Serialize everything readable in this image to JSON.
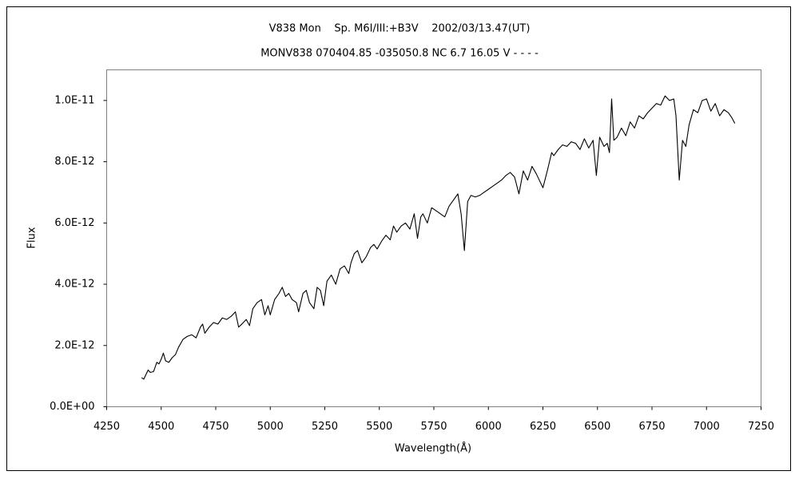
{
  "chart_data": {
    "type": "line",
    "title": "V838 Mon    Sp. M6I/III:+B3V    2002/03/13.47(UT)",
    "subtitle": "MONV838 070404.85 -035050.8 NC 6.7 16.05 V - - - -",
    "x_label": "Wavelength(Å)",
    "y_label": "Flux",
    "color": "#000000",
    "grid": false,
    "xlim": [
      4250,
      7250
    ],
    "xticks": [
      4250,
      4500,
      4750,
      5000,
      5250,
      5500,
      5750,
      6000,
      6250,
      6500,
      6750,
      7000,
      7250
    ],
    "ylim": [
      0,
      1.1e-11
    ],
    "yticks": [
      {
        "value": 0,
        "label": "0.0E+00"
      },
      {
        "value": 2e-12,
        "label": "2.0E-12"
      },
      {
        "value": 4e-12,
        "label": "4.0E-12"
      },
      {
        "value": 6e-12,
        "label": "6.0E-12"
      },
      {
        "value": 8e-12,
        "label": "8.0E-12"
      },
      {
        "value": 1e-11,
        "label": "1.0E-11"
      }
    ],
    "x": [
      4410,
      4420,
      4430,
      4440,
      4450,
      4465,
      4480,
      4490,
      4500,
      4510,
      4520,
      4535,
      4550,
      4565,
      4580,
      4600,
      4620,
      4640,
      4660,
      4680,
      4690,
      4700,
      4720,
      4740,
      4760,
      4780,
      4800,
      4820,
      4840,
      4855,
      4870,
      4890,
      4905,
      4920,
      4940,
      4960,
      4975,
      4990,
      5000,
      5020,
      5040,
      5055,
      5070,
      5085,
      5100,
      5120,
      5130,
      5150,
      5165,
      5180,
      5200,
      5215,
      5230,
      5245,
      5260,
      5280,
      5300,
      5320,
      5340,
      5360,
      5370,
      5385,
      5400,
      5420,
      5440,
      5460,
      5475,
      5490,
      5510,
      5530,
      5550,
      5565,
      5580,
      5600,
      5620,
      5640,
      5660,
      5675,
      5690,
      5700,
      5720,
      5740,
      5760,
      5780,
      5800,
      5820,
      5840,
      5860,
      5875,
      5890,
      5905,
      5920,
      5940,
      5960,
      5980,
      6000,
      6020,
      6040,
      6060,
      6080,
      6100,
      6120,
      6140,
      6160,
      6180,
      6200,
      6220,
      6240,
      6250,
      6270,
      6290,
      6300,
      6320,
      6340,
      6360,
      6380,
      6400,
      6420,
      6440,
      6460,
      6480,
      6495,
      6510,
      6530,
      6545,
      6555,
      6565,
      6575,
      6590,
      6610,
      6630,
      6650,
      6670,
      6690,
      6710,
      6730,
      6750,
      6770,
      6790,
      6810,
      6830,
      6850,
      6860,
      6875,
      6890,
      6905,
      6920,
      6940,
      6960,
      6980,
      7000,
      7020,
      7040,
      7060,
      7080,
      7100,
      7115,
      7130
    ],
    "values": [
      9.5e-13,
      9e-13,
      1.05e-12,
      1.2e-12,
      1.12e-12,
      1.15e-12,
      1.45e-12,
      1.4e-12,
      1.55e-12,
      1.75e-12,
      1.5e-12,
      1.45e-12,
      1.6e-12,
      1.7e-12,
      1.95e-12,
      2.2e-12,
      2.3e-12,
      2.35e-12,
      2.25e-12,
      2.6e-12,
      2.7e-12,
      2.4e-12,
      2.6e-12,
      2.75e-12,
      2.7e-12,
      2.9e-12,
      2.85e-12,
      2.95e-12,
      3.1e-12,
      2.6e-12,
      2.7e-12,
      2.85e-12,
      2.65e-12,
      3.2e-12,
      3.4e-12,
      3.5e-12,
      3e-12,
      3.3e-12,
      3e-12,
      3.5e-12,
      3.7e-12,
      3.9e-12,
      3.6e-12,
      3.7e-12,
      3.5e-12,
      3.4e-12,
      3.1e-12,
      3.7e-12,
      3.8e-12,
      3.4e-12,
      3.2e-12,
      3.9e-12,
      3.8e-12,
      3.3e-12,
      4.1e-12,
      4.3e-12,
      4e-12,
      4.5e-12,
      4.6e-12,
      4.35e-12,
      4.7e-12,
      5e-12,
      5.1e-12,
      4.7e-12,
      4.9e-12,
      5.2e-12,
      5.3e-12,
      5.15e-12,
      5.4e-12,
      5.6e-12,
      5.45e-12,
      5.9e-12,
      5.7e-12,
      5.9e-12,
      6e-12,
      5.8e-12,
      6.3e-12,
      5.5e-12,
      6.2e-12,
      6.3e-12,
      6e-12,
      6.5e-12,
      6.4e-12,
      6.3e-12,
      6.2e-12,
      6.55e-12,
      6.75e-12,
      6.95e-12,
      6.3e-12,
      5.1e-12,
      6.7e-12,
      6.9e-12,
      6.85e-12,
      6.9e-12,
      7e-12,
      7.1e-12,
      7.2e-12,
      7.3e-12,
      7.4e-12,
      7.55e-12,
      7.65e-12,
      7.5e-12,
      6.95e-12,
      7.7e-12,
      7.4e-12,
      7.85e-12,
      7.6e-12,
      7.3e-12,
      7.15e-12,
      7.7e-12,
      8.3e-12,
      8.2e-12,
      8.4e-12,
      8.55e-12,
      8.5e-12,
      8.65e-12,
      8.6e-12,
      8.4e-12,
      8.75e-12,
      8.45e-12,
      8.7e-12,
      7.55e-12,
      8.8e-12,
      8.5e-12,
      8.6e-12,
      8.3e-12,
      1.005e-11,
      8.7e-12,
      8.8e-12,
      9.1e-12,
      8.85e-12,
      9.3e-12,
      9.1e-12,
      9.5e-12,
      9.4e-12,
      9.6e-12,
      9.75e-12,
      9.9e-12,
      9.85e-12,
      1.015e-11,
      1e-11,
      1.005e-11,
      9.5e-12,
      7.4e-12,
      8.7e-12,
      8.5e-12,
      9.2e-12,
      9.7e-12,
      9.6e-12,
      1e-11,
      1.005e-11,
      9.65e-12,
      9.9e-12,
      9.5e-12,
      9.7e-12,
      9.6e-12,
      9.45e-12,
      9.25e-12
    ]
  }
}
